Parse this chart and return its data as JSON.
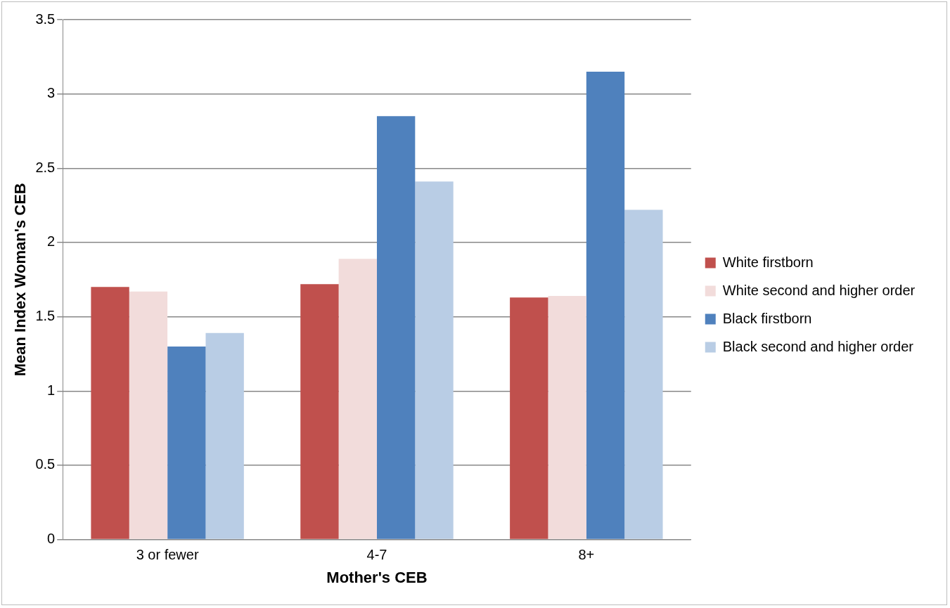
{
  "chart_data": {
    "type": "bar",
    "xlabel": "Mother's CEB",
    "ylabel": "Mean Index Woman's CEB",
    "categories": [
      "3 or fewer",
      "4-7",
      "8+"
    ],
    "series": [
      {
        "name": "White firstborn",
        "color": "#c0504d",
        "values": [
          1.7,
          1.72,
          1.63
        ]
      },
      {
        "name": "White second and higher order",
        "color": "#f2dcdb",
        "values": [
          1.67,
          1.89,
          1.64
        ]
      },
      {
        "name": "Black firstborn",
        "color": "#4f81bd",
        "values": [
          1.3,
          2.85,
          3.15
        ]
      },
      {
        "name": "Black second and higher order",
        "color": "#b9cde5",
        "values": [
          1.39,
          2.41,
          2.22
        ]
      }
    ],
    "ylim": [
      0,
      3.5
    ],
    "yticks": [
      0,
      0.5,
      1,
      1.5,
      2,
      2.5,
      3,
      3.5
    ],
    "grid": "y",
    "legend": "right"
  }
}
